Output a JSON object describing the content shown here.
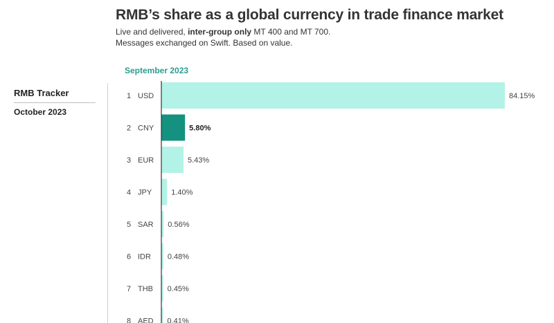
{
  "header": {
    "title": "RMB’s share as a global currency in trade finance market",
    "subtitle_line1_pre": "Live and delivered, ",
    "subtitle_line1_bold": "inter-group only",
    "subtitle_line1_post": " MT 400 and MT 700.",
    "subtitle_line2": "Messages exchanged on Swift. Based on value."
  },
  "sidebar": {
    "title": "RMB Tracker",
    "date": "October 2023"
  },
  "colors": {
    "bar": "#b3f2e6",
    "highlight": "#15917f",
    "axis": "#333333",
    "period": "#2a9d8f"
  },
  "chart_data": {
    "type": "bar",
    "orientation": "horizontal",
    "period_label": "September 2023",
    "ranks": [
      "1",
      "2",
      "3",
      "4",
      "5",
      "6",
      "7",
      "8"
    ],
    "categories": [
      "USD",
      "CNY",
      "EUR",
      "JPY",
      "SAR",
      "IDR",
      "THB",
      "AED"
    ],
    "values": [
      84.15,
      5.8,
      5.43,
      1.4,
      0.56,
      0.48,
      0.45,
      0.41
    ],
    "value_labels": [
      "84.15%",
      "5.80%",
      "5.43%",
      "1.40%",
      "0.56%",
      "0.48%",
      "0.45%",
      "0.41%"
    ],
    "highlight": "CNY",
    "xlim": [
      0,
      84.15
    ],
    "grid": false
  }
}
